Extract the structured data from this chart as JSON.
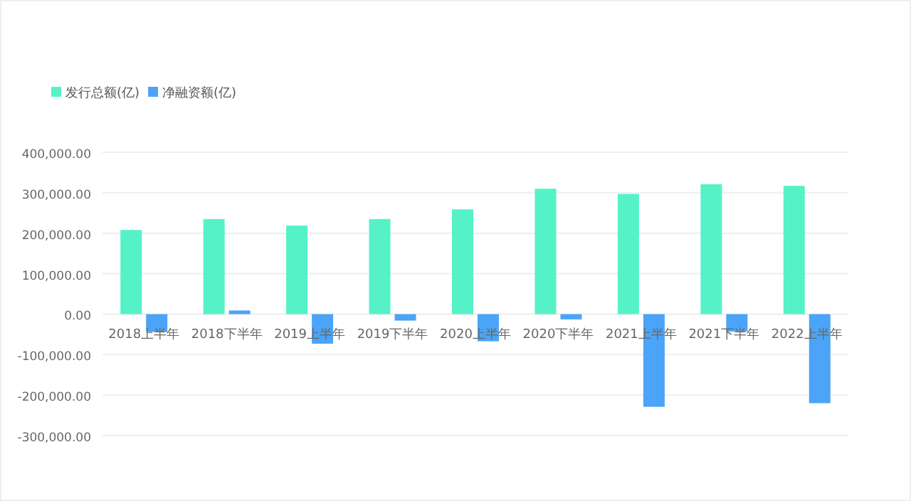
{
  "chart_data": {
    "type": "bar",
    "categories": [
      "2018上半年",
      "2018下半年",
      "2019上半年",
      "2019下半年",
      "2020上半年",
      "2020下半年",
      "2021上半年",
      "2021下半年",
      "2022上半年"
    ],
    "series": [
      {
        "name": "发行总额(亿)",
        "color": "#55f2c8",
        "values": [
          208000,
          235000,
          219000,
          235000,
          259000,
          310000,
          297000,
          321000,
          317000
        ]
      },
      {
        "name": "净融资额(亿)",
        "color": "#4ba4f7",
        "values": [
          -44000,
          9000,
          -73000,
          -16000,
          -67000,
          -13000,
          -229000,
          -43000,
          -220000
        ]
      }
    ],
    "ylim": [
      -300000,
      400000
    ],
    "yticks": [
      {
        "value": -300000,
        "label": "-300,000.00"
      },
      {
        "value": -200000,
        "label": "-200,000.00"
      },
      {
        "value": -100000,
        "label": "-100,000.00"
      },
      {
        "value": 0,
        "label": "0.00"
      },
      {
        "value": 100000,
        "label": "100,000.00"
      },
      {
        "value": 200000,
        "label": "200,000.00"
      },
      {
        "value": 300000,
        "label": "300,000.00"
      },
      {
        "value": 400000,
        "label": "400,000.00"
      }
    ],
    "grid": "y",
    "legend": "top left"
  }
}
